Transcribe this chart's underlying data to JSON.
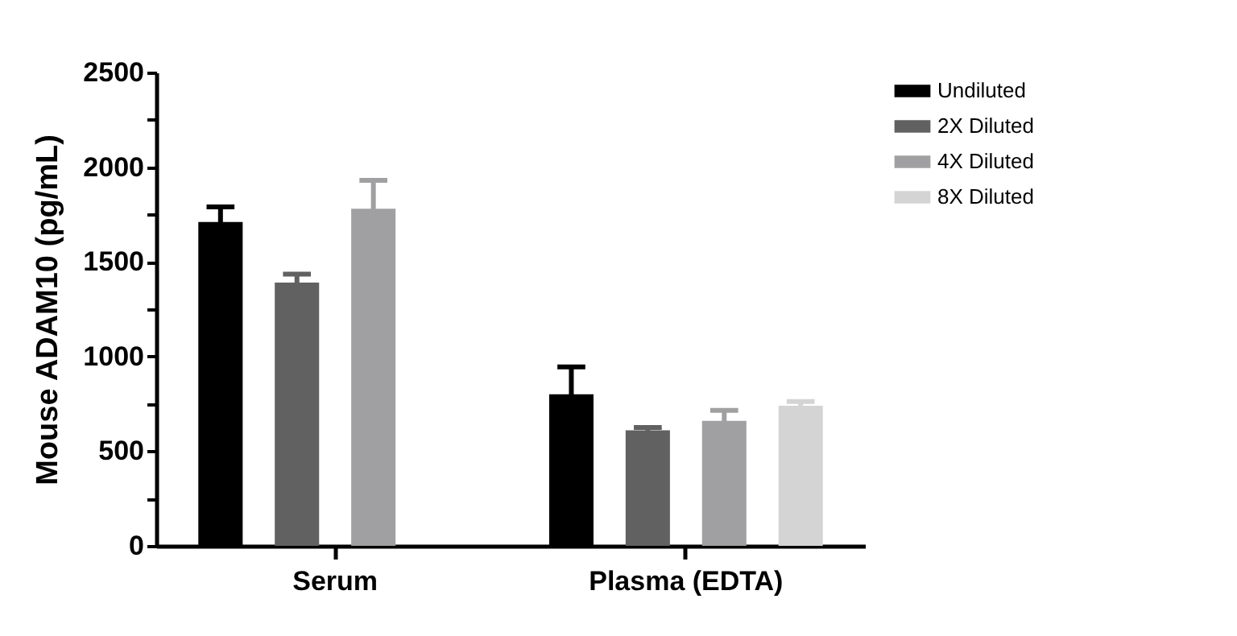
{
  "chart_data": {
    "type": "bar",
    "ylabel": "Mouse ADAM10 (pg/mL)",
    "categories": [
      "Serum",
      "Plasma (EDTA)"
    ],
    "series": [
      {
        "name": "Undiluted",
        "color": "#000000",
        "values": [
          1710,
          800
        ],
        "errors": [
          80,
          145
        ]
      },
      {
        "name": "2X Diluted",
        "color": "#616161",
        "values": [
          1390,
          610
        ],
        "errors": [
          45,
          15
        ]
      },
      {
        "name": "4X Diluted",
        "color": "#a0a0a2",
        "values": [
          1780,
          660
        ],
        "errors": [
          150,
          55
        ]
      },
      {
        "name": "8X Diluted",
        "color": "#d4d4d4",
        "values": [
          null,
          740
        ],
        "errors": [
          null,
          22
        ]
      }
    ],
    "ylim": [
      0,
      2500
    ],
    "yticks": [
      0,
      {
        "value": 250,
        "label": null
      },
      500,
      {
        "value": 750,
        "label": null
      },
      1000,
      {
        "value": 1250,
        "label": null
      },
      1500,
      {
        "value": 1750,
        "label": null
      },
      2000,
      {
        "value": 2250,
        "label": null
      },
      2500
    ],
    "grid": false,
    "legend": "right"
  }
}
